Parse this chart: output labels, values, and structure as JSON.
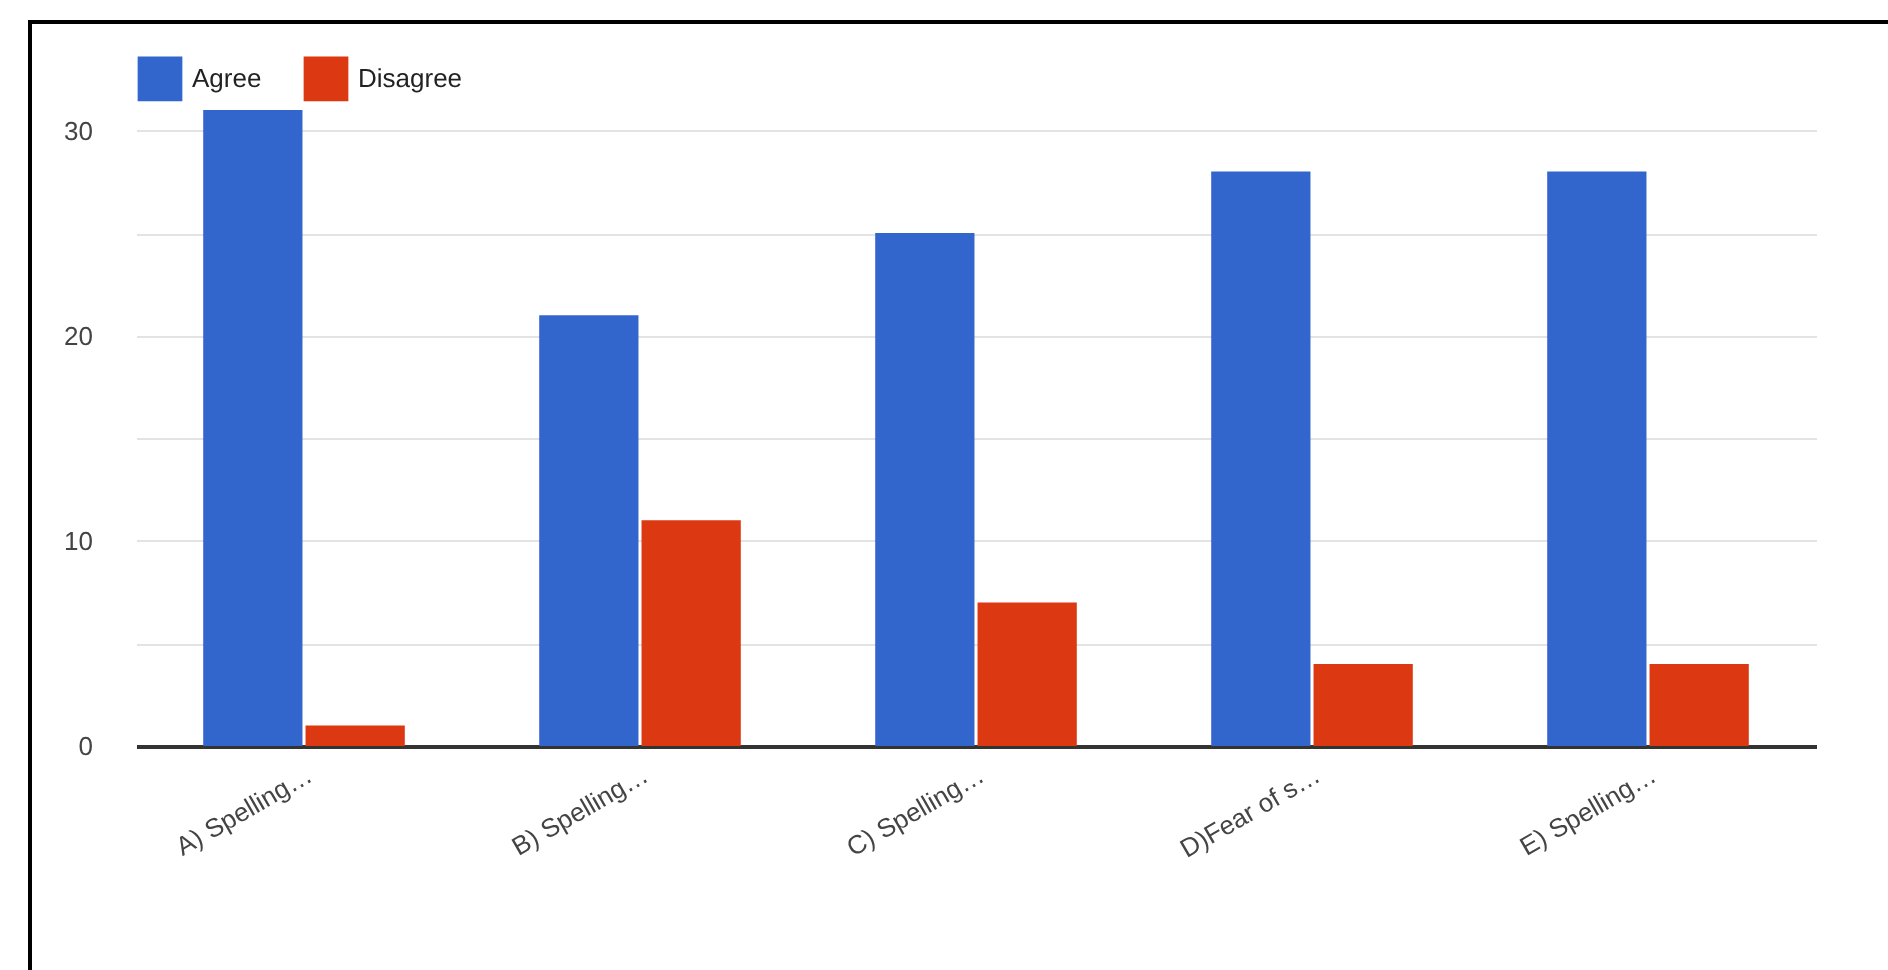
{
  "chart_data": {
    "type": "bar",
    "categories": [
      "A) Spelling…",
      "B) Spelling…",
      "C) Spelling…",
      "D)Fear of s…",
      "E) Spelling…"
    ],
    "series": [
      {
        "name": "Agree",
        "color": "#3366cc",
        "values": [
          31,
          21,
          25,
          28,
          28
        ]
      },
      {
        "name": "Disagree",
        "color": "#dc3912",
        "values": [
          1,
          11,
          7,
          4,
          4
        ]
      }
    ],
    "ylim": [
      0,
      31
    ],
    "yticks": [
      0,
      {
        "value": 5,
        "label": null
      },
      10,
      {
        "value": 15,
        "label": null
      },
      20,
      {
        "value": 25,
        "label": null
      },
      30
    ],
    "grid": "y",
    "legend": "top left"
  }
}
